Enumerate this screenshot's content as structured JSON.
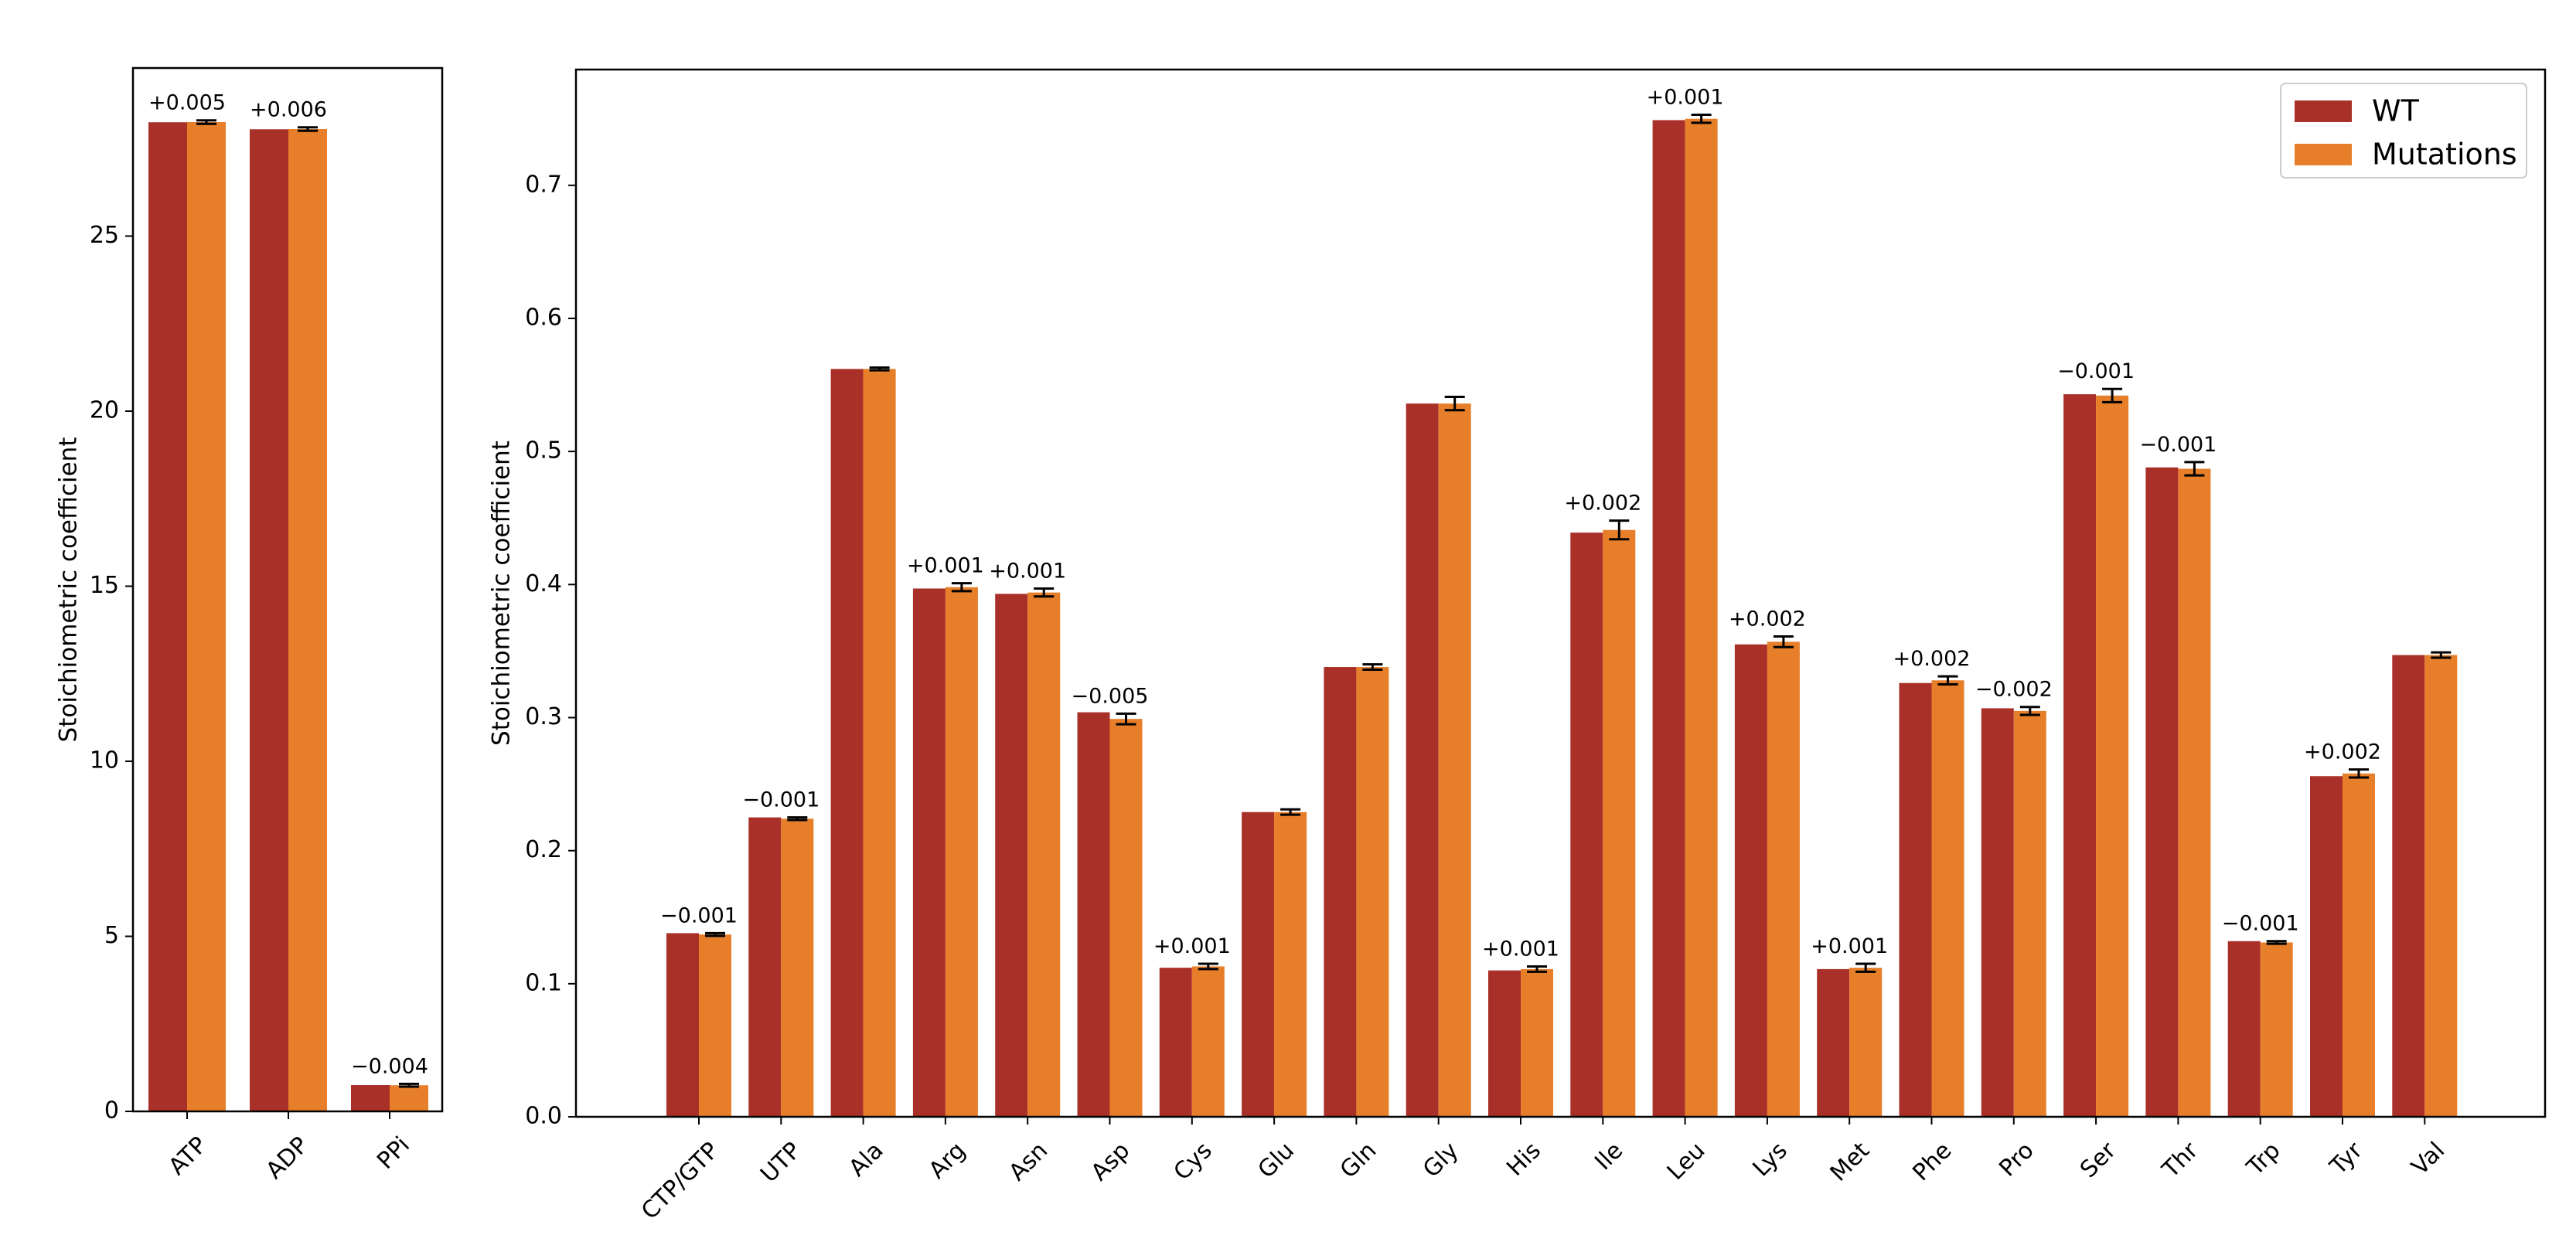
{
  "colors": {
    "wt": "#A93029",
    "mut": "#E67E2A",
    "error": "#000000"
  },
  "legend": {
    "placement": "top-right",
    "entries": [
      {
        "name": "WT",
        "color": "#A93029"
      },
      {
        "name": "Mutations",
        "color": "#E67E2A"
      }
    ]
  },
  "chart_data": [
    {
      "type": "bar",
      "ylabel": "Stoichiometric coefficient",
      "ylim": [
        0,
        29.8
      ],
      "yticks": [
        0,
        5,
        10,
        15,
        20,
        25
      ],
      "categories": [
        "ATP",
        "ADP",
        "PPi"
      ],
      "series": [
        {
          "name": "WT",
          "values": [
            28.25,
            28.05,
            0.75
          ]
        },
        {
          "name": "Mutations",
          "values": [
            28.255,
            28.056,
            0.746
          ],
          "errors": [
            0.05,
            0.05,
            0.04
          ]
        }
      ],
      "annotations": [
        "+0.005",
        "+0.006",
        "−0.004"
      ],
      "grid": false
    },
    {
      "type": "bar",
      "ylabel": "Stoichiometric coefficient",
      "ylim": [
        0,
        0.787
      ],
      "yticks": [
        0.0,
        0.1,
        0.2,
        0.3,
        0.4,
        0.5,
        0.6,
        0.7
      ],
      "categories": [
        "CTP/GTP",
        "UTP",
        "Ala",
        "Arg",
        "Asn",
        "Asp",
        "Cys",
        "Glu",
        "Gln",
        "Gly",
        "His",
        "Ile",
        "Leu",
        "Lys",
        "Met",
        "Phe",
        "Pro",
        "Ser",
        "Thr",
        "Trp",
        "Tyr",
        "Val"
      ],
      "series": [
        {
          "name": "WT",
          "values": [
            0.138,
            0.225,
            0.562,
            0.397,
            0.393,
            0.304,
            0.112,
            0.229,
            0.338,
            0.536,
            0.11,
            0.439,
            0.749,
            0.355,
            0.111,
            0.326,
            0.307,
            0.543,
            0.488,
            0.132,
            0.256,
            0.347
          ]
        },
        {
          "name": "Mutations",
          "values": [
            0.137,
            0.224,
            0.562,
            0.398,
            0.394,
            0.299,
            0.113,
            0.229,
            0.338,
            0.536,
            0.111,
            0.441,
            0.75,
            0.357,
            0.112,
            0.328,
            0.305,
            0.542,
            0.487,
            0.131,
            0.258,
            0.347
          ],
          "errors": [
            0.001,
            0.001,
            0.001,
            0.003,
            0.003,
            0.004,
            0.002,
            0.002,
            0.002,
            0.005,
            0.002,
            0.007,
            0.003,
            0.004,
            0.003,
            0.003,
            0.003,
            0.005,
            0.005,
            0.001,
            0.003,
            0.002
          ]
        }
      ],
      "annotations": [
        "−0.001",
        "−0.001",
        "",
        "+0.001",
        "+0.001",
        "−0.005",
        "+0.001",
        "",
        "",
        "",
        "+0.001",
        "+0.002",
        "+0.001",
        "+0.002",
        "+0.001",
        "+0.002",
        "−0.002",
        "−0.001",
        "−0.001",
        "−0.001",
        "+0.002",
        ""
      ],
      "grid": false
    }
  ]
}
